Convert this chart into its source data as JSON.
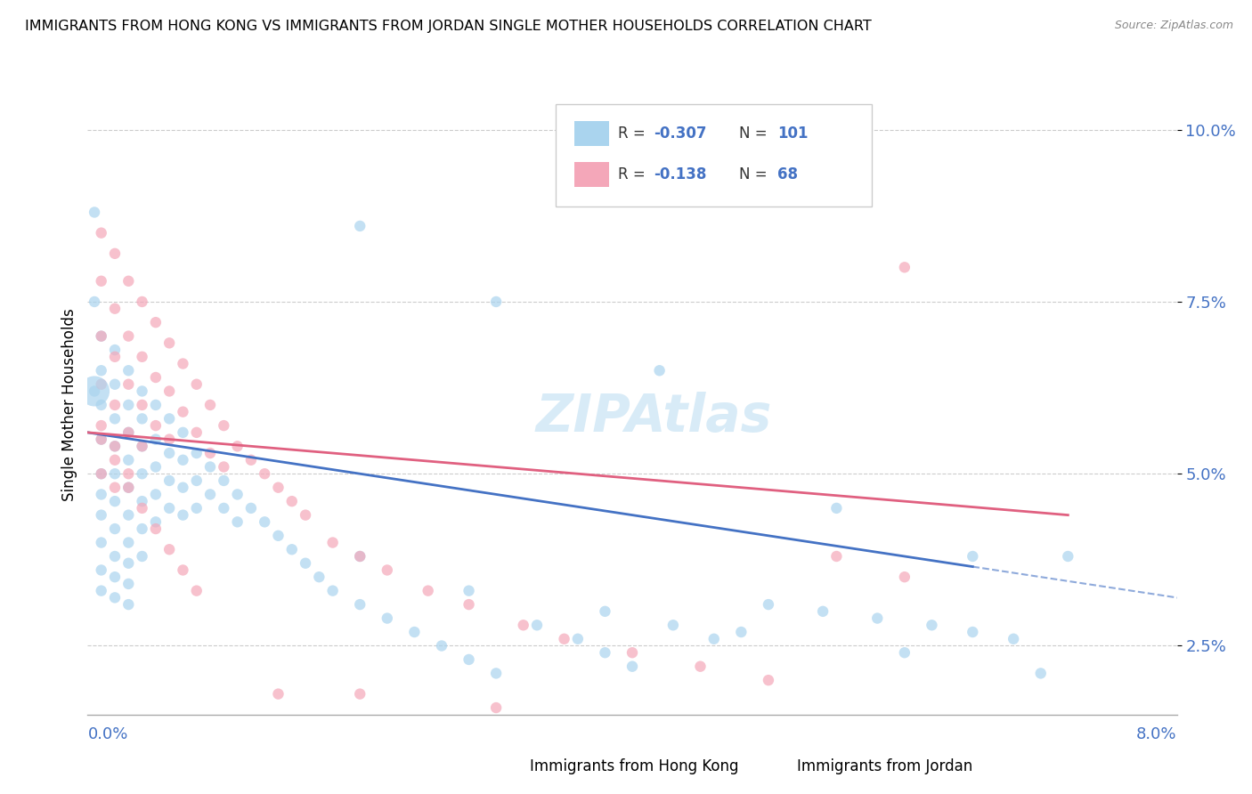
{
  "title": "IMMIGRANTS FROM HONG KONG VS IMMIGRANTS FROM JORDAN SINGLE MOTHER HOUSEHOLDS CORRELATION CHART",
  "source": "Source: ZipAtlas.com",
  "ylabel": "Single Mother Households",
  "xmin": 0.0,
  "xmax": 0.08,
  "ymin": 0.015,
  "ymax": 0.105,
  "yticks": [
    0.025,
    0.05,
    0.075,
    0.1
  ],
  "ytick_labels": [
    "2.5%",
    "5.0%",
    "7.5%",
    "10.0%"
  ],
  "color_hk": "#aad4ee",
  "color_jordan": "#f4a7b9",
  "line_color_hk": "#4472c4",
  "line_color_jordan": "#e06080",
  "hk_slope": -30.0,
  "hk_intercept": 0.056,
  "jordan_slope": -15.0,
  "jordan_intercept": 0.056,
  "hk_x": [
    0.001,
    0.001,
    0.001,
    0.001,
    0.001,
    0.001,
    0.001,
    0.001,
    0.001,
    0.001,
    0.002,
    0.002,
    0.002,
    0.002,
    0.002,
    0.002,
    0.002,
    0.002,
    0.002,
    0.002,
    0.003,
    0.003,
    0.003,
    0.003,
    0.003,
    0.003,
    0.003,
    0.003,
    0.003,
    0.003,
    0.004,
    0.004,
    0.004,
    0.004,
    0.004,
    0.004,
    0.004,
    0.005,
    0.005,
    0.005,
    0.005,
    0.005,
    0.006,
    0.006,
    0.006,
    0.006,
    0.007,
    0.007,
    0.007,
    0.007,
    0.008,
    0.008,
    0.008,
    0.009,
    0.009,
    0.01,
    0.01,
    0.011,
    0.011,
    0.012,
    0.013,
    0.014,
    0.015,
    0.016,
    0.017,
    0.018,
    0.02,
    0.022,
    0.024,
    0.026,
    0.028,
    0.03,
    0.033,
    0.036,
    0.038,
    0.04,
    0.043,
    0.046,
    0.05,
    0.054,
    0.058,
    0.062,
    0.065,
    0.068,
    0.072,
    0.0005,
    0.0005,
    0.0005,
    0.02,
    0.03,
    0.042,
    0.055,
    0.065,
    0.02,
    0.028,
    0.038,
    0.048,
    0.06,
    0.07
  ],
  "hk_y": [
    0.07,
    0.065,
    0.06,
    0.055,
    0.05,
    0.047,
    0.044,
    0.04,
    0.036,
    0.033,
    0.068,
    0.063,
    0.058,
    0.054,
    0.05,
    0.046,
    0.042,
    0.038,
    0.035,
    0.032,
    0.065,
    0.06,
    0.056,
    0.052,
    0.048,
    0.044,
    0.04,
    0.037,
    0.034,
    0.031,
    0.062,
    0.058,
    0.054,
    0.05,
    0.046,
    0.042,
    0.038,
    0.06,
    0.055,
    0.051,
    0.047,
    0.043,
    0.058,
    0.053,
    0.049,
    0.045,
    0.056,
    0.052,
    0.048,
    0.044,
    0.053,
    0.049,
    0.045,
    0.051,
    0.047,
    0.049,
    0.045,
    0.047,
    0.043,
    0.045,
    0.043,
    0.041,
    0.039,
    0.037,
    0.035,
    0.033,
    0.031,
    0.029,
    0.027,
    0.025,
    0.023,
    0.021,
    0.028,
    0.026,
    0.024,
    0.022,
    0.028,
    0.026,
    0.031,
    0.03,
    0.029,
    0.028,
    0.027,
    0.026,
    0.038,
    0.088,
    0.075,
    0.062,
    0.086,
    0.075,
    0.065,
    0.045,
    0.038,
    0.038,
    0.033,
    0.03,
    0.027,
    0.024,
    0.021
  ],
  "jordan_x": [
    0.001,
    0.001,
    0.001,
    0.001,
    0.001,
    0.001,
    0.002,
    0.002,
    0.002,
    0.002,
    0.002,
    0.002,
    0.003,
    0.003,
    0.003,
    0.003,
    0.003,
    0.004,
    0.004,
    0.004,
    0.004,
    0.005,
    0.005,
    0.005,
    0.006,
    0.006,
    0.006,
    0.007,
    0.007,
    0.008,
    0.008,
    0.009,
    0.009,
    0.01,
    0.01,
    0.011,
    0.012,
    0.013,
    0.014,
    0.015,
    0.016,
    0.018,
    0.02,
    0.022,
    0.025,
    0.028,
    0.032,
    0.035,
    0.04,
    0.045,
    0.05,
    0.055,
    0.06,
    0.014,
    0.02,
    0.03,
    0.001,
    0.002,
    0.003,
    0.004,
    0.005,
    0.006,
    0.007,
    0.008,
    0.06
  ],
  "jordan_y": [
    0.085,
    0.078,
    0.07,
    0.063,
    0.057,
    0.05,
    0.082,
    0.074,
    0.067,
    0.06,
    0.054,
    0.048,
    0.078,
    0.07,
    0.063,
    0.056,
    0.05,
    0.075,
    0.067,
    0.06,
    0.054,
    0.072,
    0.064,
    0.057,
    0.069,
    0.062,
    0.055,
    0.066,
    0.059,
    0.063,
    0.056,
    0.06,
    0.053,
    0.057,
    0.051,
    0.054,
    0.052,
    0.05,
    0.048,
    0.046,
    0.044,
    0.04,
    0.038,
    0.036,
    0.033,
    0.031,
    0.028,
    0.026,
    0.024,
    0.022,
    0.02,
    0.038,
    0.035,
    0.018,
    0.018,
    0.016,
    0.055,
    0.052,
    0.048,
    0.045,
    0.042,
    0.039,
    0.036,
    0.033,
    0.08
  ]
}
